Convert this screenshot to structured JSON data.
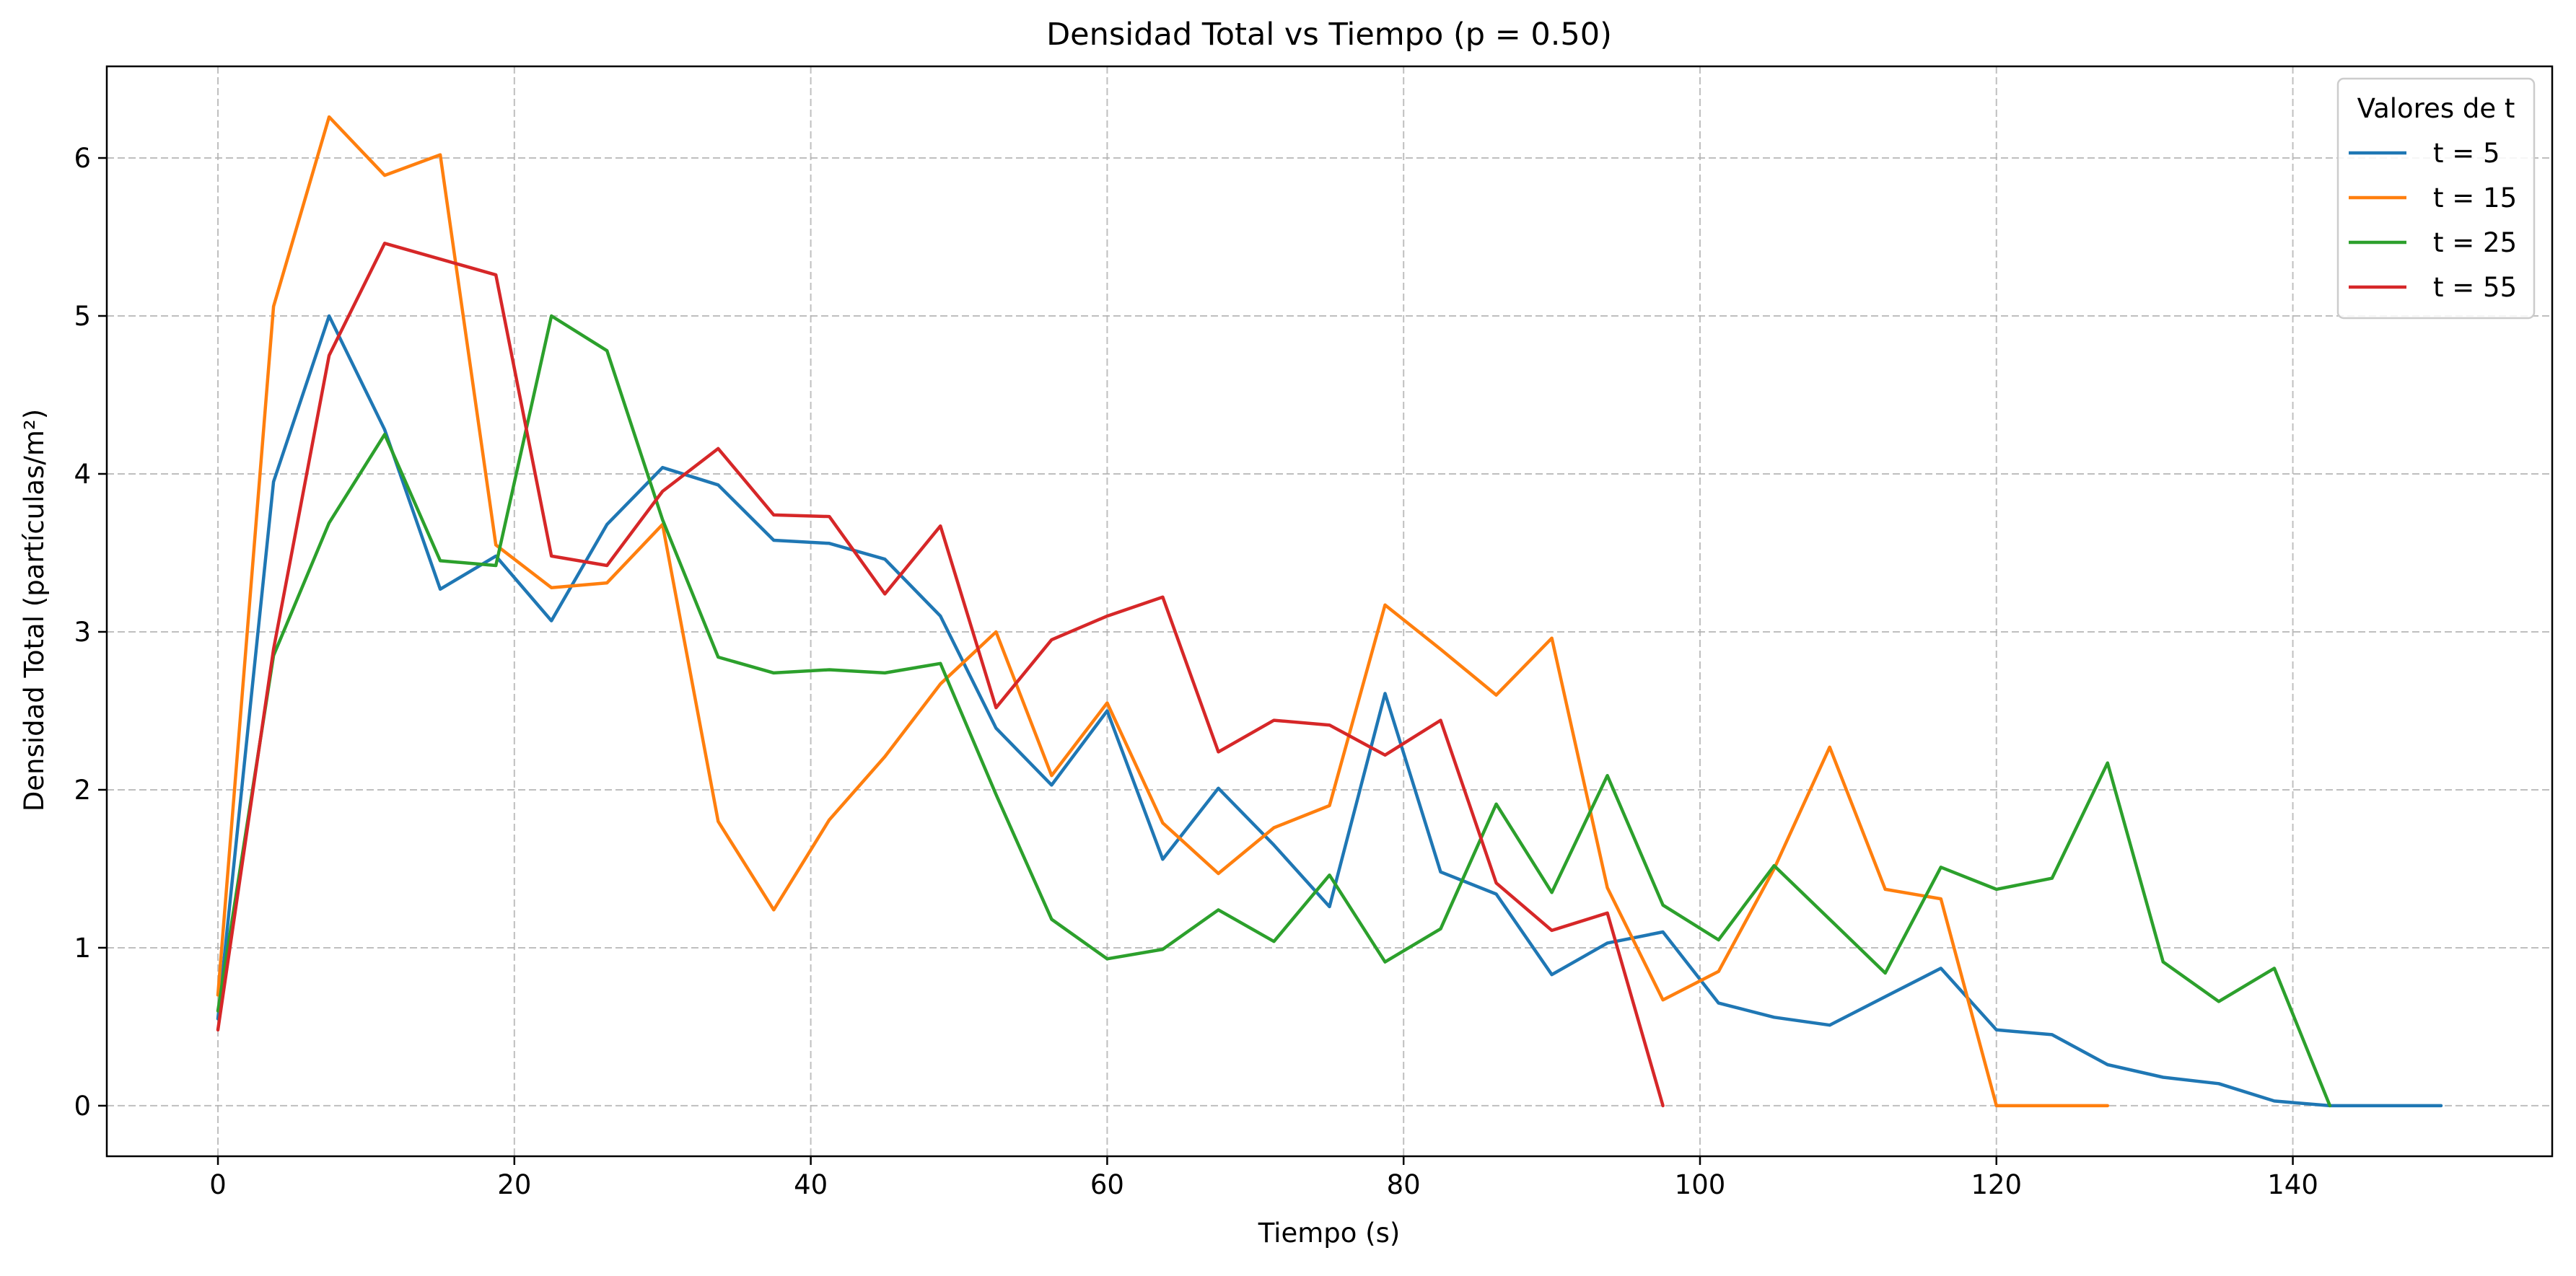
{
  "chart_data": {
    "type": "line",
    "title": "Densidad Total vs Tiempo (p = 0.50)",
    "xlabel": "Tiempo (s)",
    "ylabel": "Densidad Total (partículas/m²)",
    "xlim": [
      -7.5,
      157.5
    ],
    "ylim": [
      -0.32,
      6.58
    ],
    "xticks": [
      0,
      20,
      40,
      60,
      80,
      100,
      120,
      140
    ],
    "yticks": [
      0,
      1,
      2,
      3,
      4,
      5,
      6
    ],
    "grid": true,
    "legend": {
      "title": "Valores de t",
      "placement": "top-right"
    },
    "series": [
      {
        "name": "t = 5",
        "color": "#1f77b4",
        "points": [
          [
            0,
            0.55
          ],
          [
            3.75,
            3.95
          ],
          [
            7.5,
            5.0
          ],
          [
            11.25,
            4.28
          ],
          [
            15,
            3.27
          ],
          [
            18.75,
            3.48
          ],
          [
            22.5,
            3.07
          ],
          [
            26.25,
            3.68
          ],
          [
            30,
            4.04
          ],
          [
            33.75,
            3.93
          ],
          [
            37.5,
            3.58
          ],
          [
            41.25,
            3.56
          ],
          [
            45,
            3.46
          ],
          [
            48.75,
            3.1
          ],
          [
            52.5,
            2.39
          ],
          [
            56.25,
            2.03
          ],
          [
            60,
            2.5
          ],
          [
            63.75,
            1.56
          ],
          [
            67.5,
            2.01
          ],
          [
            71.25,
            1.65
          ],
          [
            75,
            1.26
          ],
          [
            78.75,
            2.61
          ],
          [
            82.5,
            1.48
          ],
          [
            86.25,
            1.34
          ],
          [
            90,
            0.83
          ],
          [
            93.75,
            1.03
          ],
          [
            97.5,
            1.1
          ],
          [
            101.25,
            0.65
          ],
          [
            105,
            0.56
          ],
          [
            108.75,
            0.51
          ],
          [
            112.5,
            0.69
          ],
          [
            116.25,
            0.87
          ],
          [
            120,
            0.48
          ],
          [
            123.75,
            0.45
          ],
          [
            127.5,
            0.26
          ],
          [
            131.25,
            0.18
          ],
          [
            135,
            0.14
          ],
          [
            138.75,
            0.03
          ],
          [
            142.5,
            0.0
          ],
          [
            146.25,
            0.0
          ],
          [
            150,
            0.0
          ]
        ]
      },
      {
        "name": "t = 15",
        "color": "#ff7f0e",
        "points": [
          [
            0,
            0.7
          ],
          [
            3.75,
            5.06
          ],
          [
            7.5,
            6.26
          ],
          [
            11.25,
            5.89
          ],
          [
            15,
            6.02
          ],
          [
            18.75,
            3.55
          ],
          [
            22.5,
            3.28
          ],
          [
            26.25,
            3.31
          ],
          [
            30,
            3.68
          ],
          [
            33.75,
            1.8
          ],
          [
            37.5,
            1.24
          ],
          [
            41.25,
            1.81
          ],
          [
            45,
            2.21
          ],
          [
            48.75,
            2.67
          ],
          [
            52.5,
            3.0
          ],
          [
            56.25,
            2.09
          ],
          [
            60,
            2.55
          ],
          [
            63.75,
            1.79
          ],
          [
            67.5,
            1.47
          ],
          [
            71.25,
            1.76
          ],
          [
            75,
            1.9
          ],
          [
            78.75,
            3.17
          ],
          [
            82.5,
            2.89
          ],
          [
            86.25,
            2.6
          ],
          [
            90,
            2.96
          ],
          [
            93.75,
            1.38
          ],
          [
            97.5,
            0.67
          ],
          [
            101.25,
            0.85
          ],
          [
            105,
            1.5
          ],
          [
            108.75,
            2.27
          ],
          [
            112.5,
            1.37
          ],
          [
            116.25,
            1.31
          ],
          [
            120,
            0.0
          ],
          [
            123.75,
            0.0
          ],
          [
            127.5,
            0.0
          ]
        ]
      },
      {
        "name": "t = 25",
        "color": "#2ca02c",
        "points": [
          [
            0,
            0.6
          ],
          [
            3.75,
            2.85
          ],
          [
            7.5,
            3.69
          ],
          [
            11.25,
            4.25
          ],
          [
            15,
            3.45
          ],
          [
            18.75,
            3.42
          ],
          [
            22.5,
            5.0
          ],
          [
            26.25,
            4.78
          ],
          [
            30,
            3.71
          ],
          [
            33.75,
            2.84
          ],
          [
            37.5,
            2.74
          ],
          [
            41.25,
            2.76
          ],
          [
            45,
            2.74
          ],
          [
            48.75,
            2.8
          ],
          [
            52.5,
            1.97
          ],
          [
            56.25,
            1.18
          ],
          [
            60,
            0.93
          ],
          [
            63.75,
            0.99
          ],
          [
            67.5,
            1.24
          ],
          [
            71.25,
            1.04
          ],
          [
            75,
            1.46
          ],
          [
            78.75,
            0.91
          ],
          [
            82.5,
            1.12
          ],
          [
            86.25,
            1.91
          ],
          [
            90,
            1.35
          ],
          [
            93.75,
            2.09
          ],
          [
            97.5,
            1.27
          ],
          [
            101.25,
            1.05
          ],
          [
            105,
            1.52
          ],
          [
            108.75,
            1.18
          ],
          [
            112.5,
            0.84
          ],
          [
            116.25,
            1.51
          ],
          [
            120,
            1.37
          ],
          [
            123.75,
            1.44
          ],
          [
            127.5,
            2.17
          ],
          [
            131.25,
            0.91
          ],
          [
            135,
            0.66
          ],
          [
            138.75,
            0.87
          ],
          [
            142.5,
            0.0
          ]
        ]
      },
      {
        "name": "t = 55",
        "color": "#d62728",
        "points": [
          [
            0,
            0.48
          ],
          [
            3.75,
            2.89
          ],
          [
            7.5,
            4.75
          ],
          [
            11.25,
            5.46
          ],
          [
            15,
            5.36
          ],
          [
            18.75,
            5.26
          ],
          [
            22.5,
            3.48
          ],
          [
            26.25,
            3.42
          ],
          [
            30,
            3.89
          ],
          [
            33.75,
            4.16
          ],
          [
            37.5,
            3.74
          ],
          [
            41.25,
            3.73
          ],
          [
            45,
            3.24
          ],
          [
            48.75,
            3.67
          ],
          [
            52.5,
            2.52
          ],
          [
            56.25,
            2.95
          ],
          [
            60,
            3.1
          ],
          [
            63.75,
            3.22
          ],
          [
            67.5,
            2.24
          ],
          [
            71.25,
            2.44
          ],
          [
            75,
            2.41
          ],
          [
            78.75,
            2.22
          ],
          [
            82.5,
            2.44
          ],
          [
            86.25,
            1.41
          ],
          [
            90,
            1.11
          ],
          [
            93.75,
            1.22
          ],
          [
            97.5,
            0.0
          ]
        ]
      }
    ]
  }
}
